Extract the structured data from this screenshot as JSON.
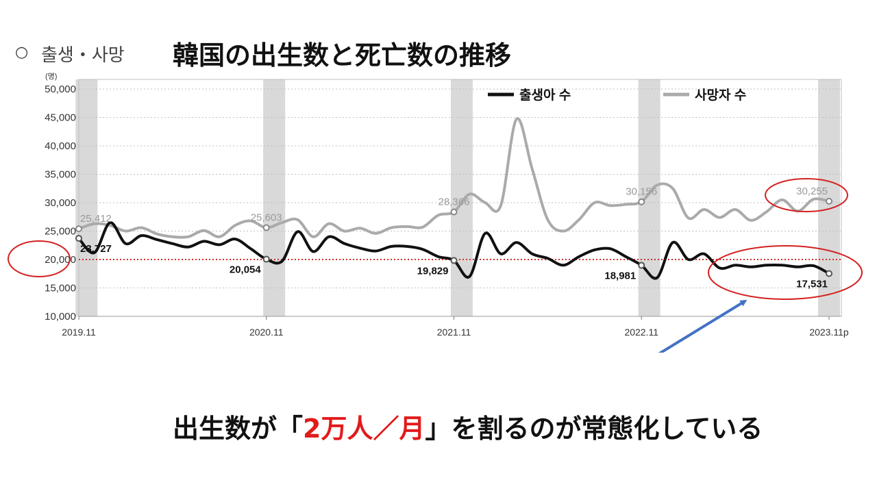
{
  "header": {
    "circle": "○",
    "label_kr": "출생・사망",
    "title": "韓国の出生数と死亡数の推移"
  },
  "caption": {
    "before": "出生数が「",
    "highlight": "2万人／月",
    "after": "」を割るのが常態化している"
  },
  "colors": {
    "births": "#111111",
    "deaths": "#aaaaaa",
    "reference": "#d42a2a",
    "highlight_ellipse": "#d42020",
    "arrow": "#4472c4",
    "shade": "#d9d9d9"
  },
  "chart_data": {
    "type": "line",
    "unit": "(명)",
    "y_ticks": [
      "50,000",
      "45,000",
      "40,000",
      "35,000",
      "30,000",
      "25,000",
      "20,000",
      "15,000",
      "10,000"
    ],
    "ylim": [
      10000,
      50000
    ],
    "x_tick_labels": [
      "2019.11",
      "2020.11",
      "2021.11",
      "2022.11",
      "2023.11p"
    ],
    "x_tick_months": [
      0,
      12,
      24,
      36,
      48
    ],
    "shaded_months": [
      0.5,
      12.5,
      24.5,
      36.5,
      48
    ],
    "reference_line": 20000,
    "legend": [
      "출생아 수",
      "사망자 수"
    ],
    "legend_position": "top-right",
    "series": [
      {
        "name": "출생아 수",
        "values": [
          23727,
          21200,
          26500,
          22800,
          24200,
          23500,
          22800,
          22200,
          23200,
          22600,
          23600,
          21900,
          20054,
          19700,
          24900,
          21400,
          24000,
          22800,
          22000,
          21500,
          22300,
          22300,
          21800,
          20500,
          19829,
          17000,
          24600,
          21000,
          23000,
          21000,
          20200,
          19000,
          20500,
          21700,
          21900,
          20500,
          18981,
          16800,
          23000,
          20000,
          21000,
          18500,
          19000,
          18700,
          19000,
          19000,
          18700,
          18900,
          17531
        ],
        "labels": [
          {
            "month": 0,
            "text": "23,727"
          },
          {
            "month": 12,
            "text": "20,054"
          },
          {
            "month": 24,
            "text": "19,829"
          },
          {
            "month": 36,
            "text": "18,981"
          },
          {
            "month": 48,
            "text": "17,531"
          }
        ]
      },
      {
        "name": "사망자 수",
        "values": [
          25412,
          26300,
          26000,
          25000,
          25600,
          24500,
          24000,
          24000,
          25100,
          24000,
          26000,
          26800,
          25603,
          26500,
          27000,
          24000,
          26300,
          25000,
          25500,
          24600,
          25600,
          25800,
          25700,
          27800,
          28366,
          31500,
          30000,
          29500,
          44700,
          36000,
          27000,
          25000,
          27000,
          30000,
          29500,
          29700,
          30156,
          33100,
          32500,
          27300,
          28800,
          27400,
          28800,
          26900,
          28400,
          30500,
          28500,
          30600,
          30255
        ],
        "labels": [
          {
            "month": 0,
            "text": "25,412"
          },
          {
            "month": 12,
            "text": "25,603"
          },
          {
            "month": 24,
            "text": "28,366"
          },
          {
            "month": 36,
            "text": "30,156"
          },
          {
            "month": 48,
            "text": "30,255"
          }
        ]
      }
    ]
  }
}
